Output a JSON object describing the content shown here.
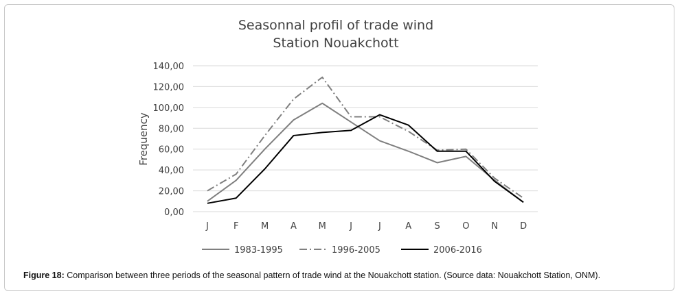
{
  "chart_data": {
    "type": "line",
    "title_lines": [
      "Seasonnal profil of trade wind",
      "Station Nouakchott"
    ],
    "xlabel": "",
    "ylabel": "Frequency",
    "categories": [
      "J",
      "F",
      "M",
      "A",
      "M",
      "J",
      "J",
      "A",
      "S",
      "O",
      "N",
      "D"
    ],
    "ylim": [
      0,
      140
    ],
    "yticks": [
      0,
      20,
      40,
      60,
      80,
      100,
      120,
      140
    ],
    "ytick_labels": [
      "0,00",
      "20,00",
      "40,00",
      "60,00",
      "80,00",
      "100,00",
      "120,00",
      "140,00"
    ],
    "grid": true,
    "legend_position": "bottom",
    "series": [
      {
        "name": "1983-1995",
        "color": "#7f7f7f",
        "dash": "solid",
        "values": [
          10,
          30,
          60,
          88,
          104,
          86,
          68,
          58,
          47,
          53,
          30,
          9
        ]
      },
      {
        "name": "1996-2005",
        "color": "#7f7f7f",
        "dash": "dash-dot",
        "values": [
          20,
          36,
          73,
          108,
          129,
          91,
          91,
          77,
          59,
          60,
          32,
          13
        ]
      },
      {
        "name": "2006-2016",
        "color": "#000000",
        "dash": "solid",
        "values": [
          8,
          13,
          41,
          73,
          76,
          78,
          93,
          83,
          58,
          58,
          29,
          9
        ]
      }
    ]
  },
  "caption": {
    "label": "Figure 18:",
    "text": " Comparison between three periods of the seasonal pattern of trade wind at the Nouakchott station. (Source data: Nouakchott Station, ONM)."
  }
}
